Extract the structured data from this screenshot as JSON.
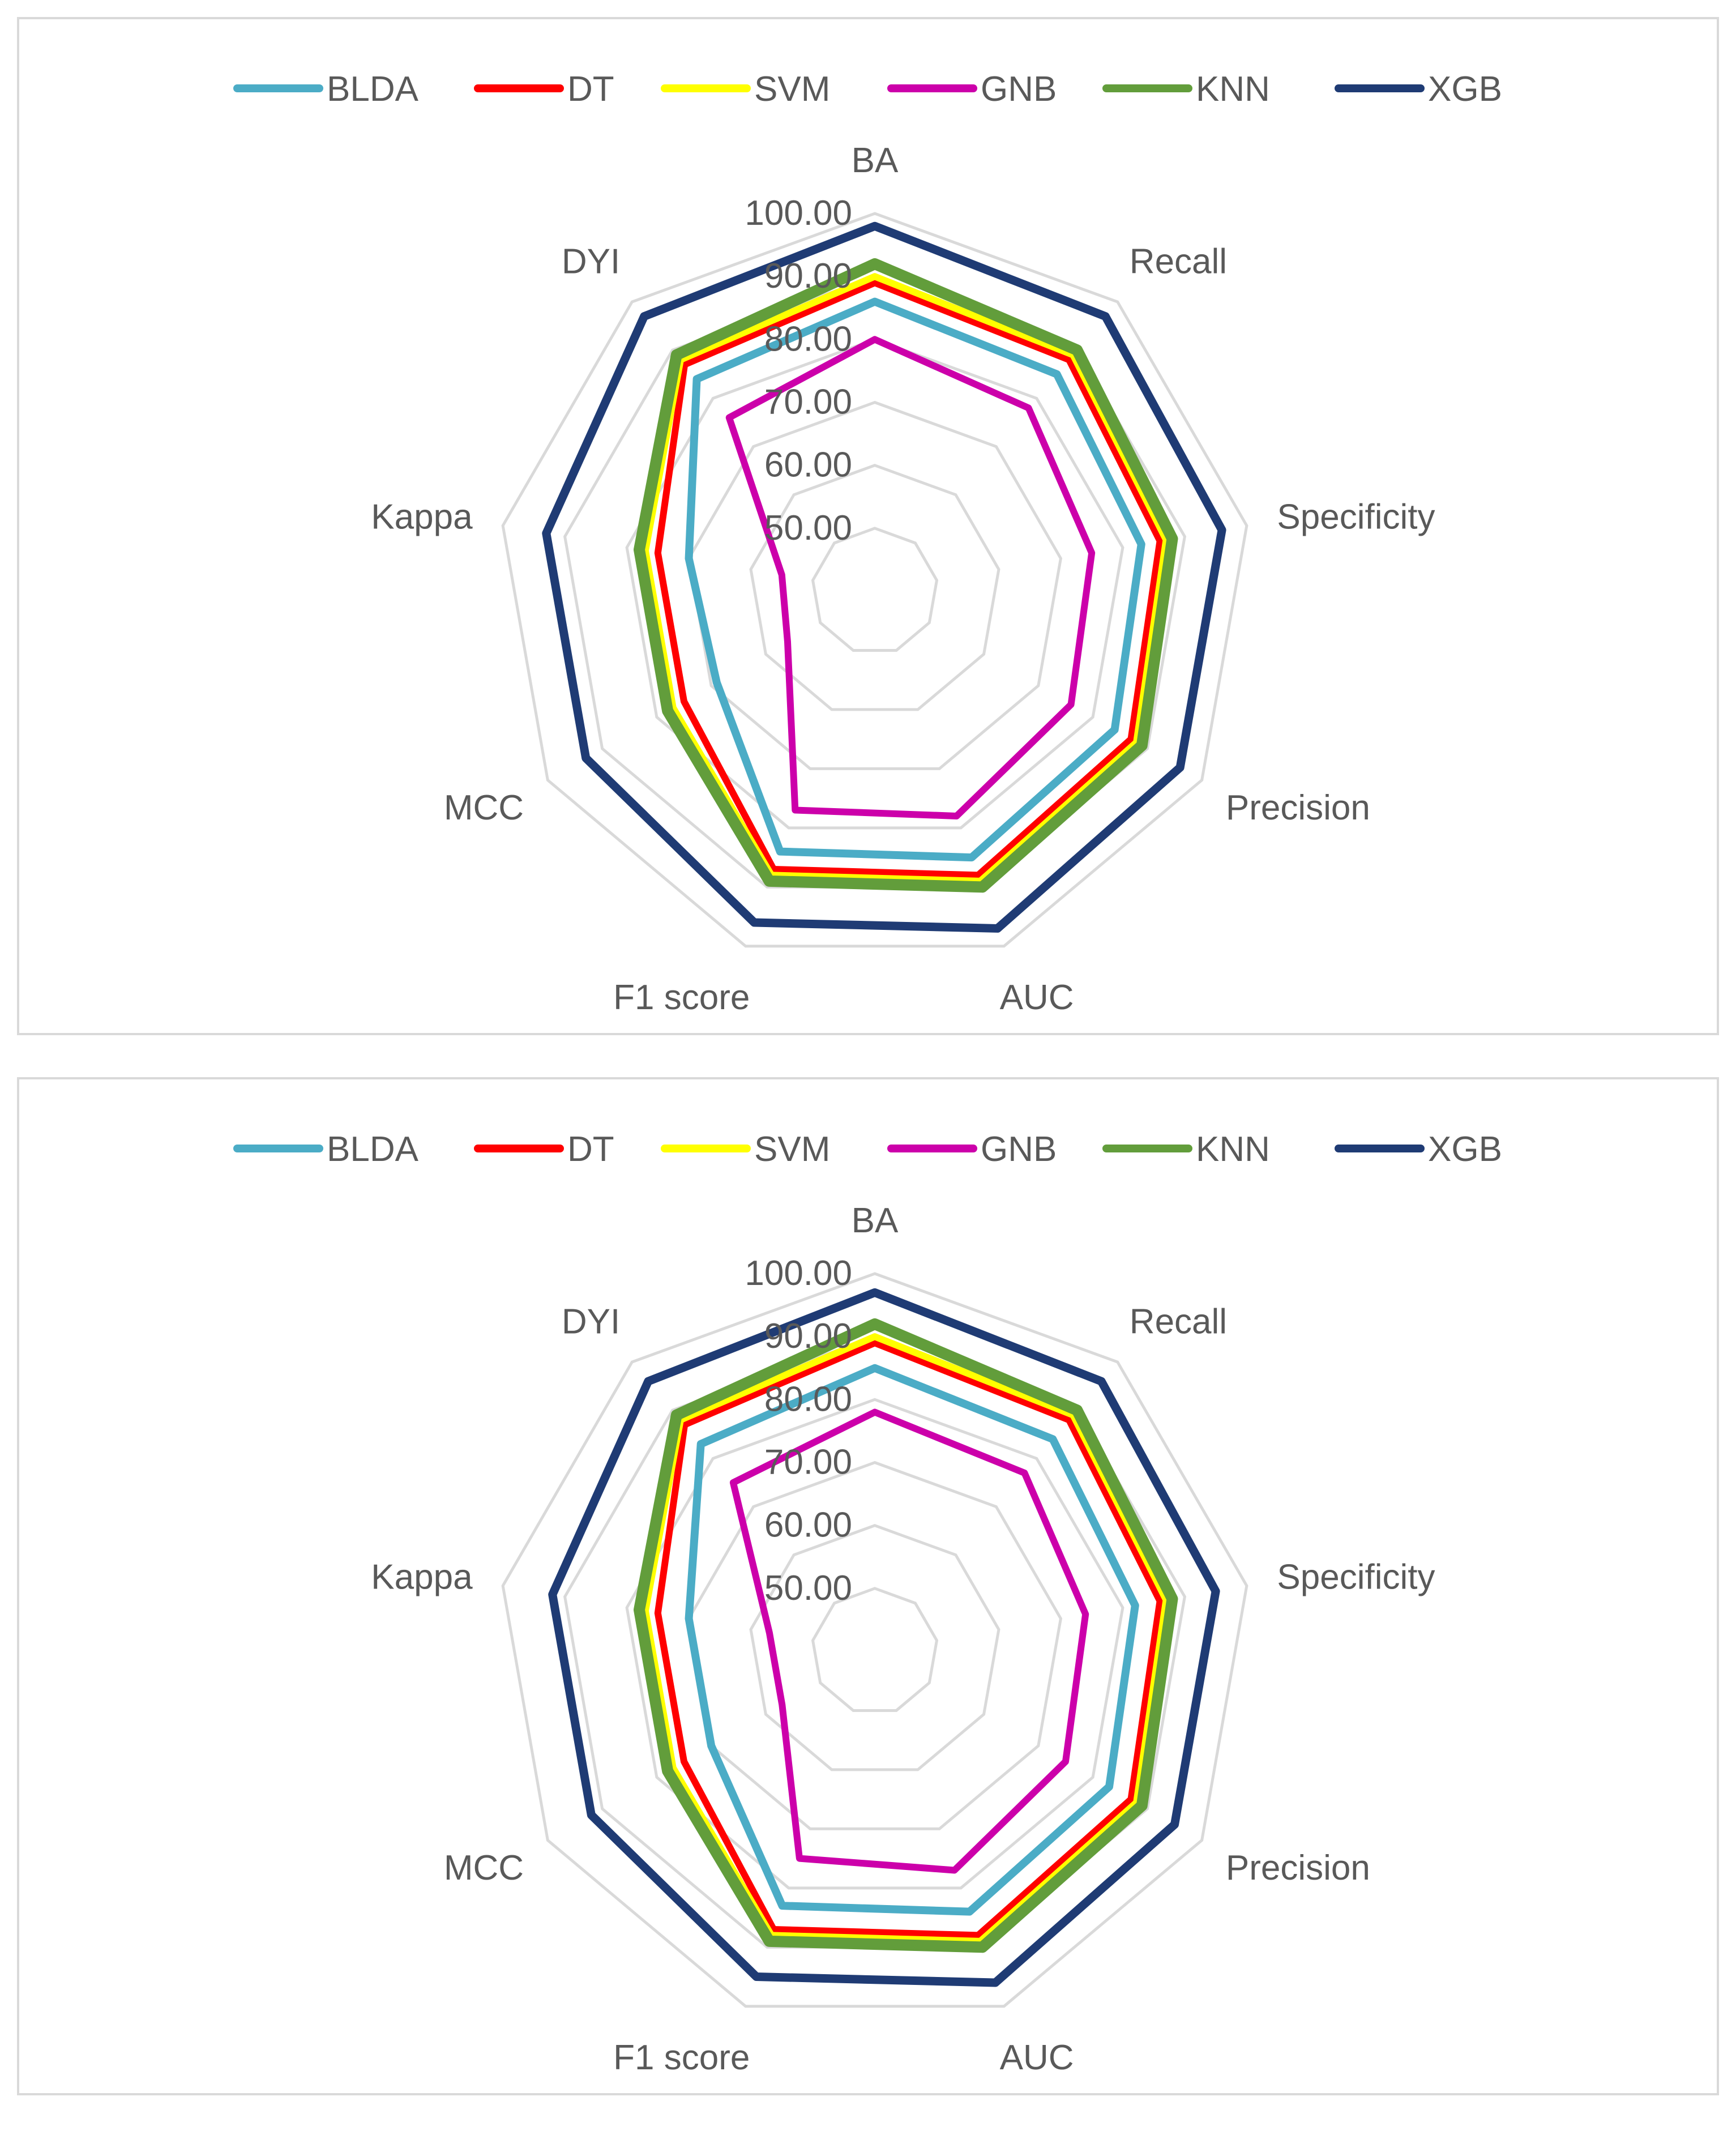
{
  "chart_data": [
    {
      "type": "radar",
      "axes": [
        "BA",
        "Recall",
        "Specificity",
        "Precision",
        "AUC",
        "F1 score",
        "MCC",
        "Kappa",
        "DYI"
      ],
      "ticks": [
        "50.00",
        "60.00",
        "70.00",
        "80.00",
        "90.00",
        "100.00"
      ],
      "range": [
        40,
        100
      ],
      "legend_position": "top",
      "series": [
        {
          "name": "BLDA",
          "color": "#4bacc6",
          "values": [
            86,
            85,
            83,
            84,
            85,
            84,
            69,
            70,
            84
          ]
        },
        {
          "name": "DT",
          "color": "#ff0000",
          "values": [
            89,
            88,
            86,
            87,
            88,
            87,
            75,
            75,
            87
          ]
        },
        {
          "name": "SVM",
          "color": "#ffff00",
          "values": [
            90,
            89,
            87,
            88,
            89,
            88,
            77,
            77,
            88
          ]
        },
        {
          "name": "GNB",
          "color": "#cc00aa",
          "values": [
            80,
            78,
            75,
            76,
            78,
            77,
            56,
            55,
            76
          ]
        },
        {
          "name": "KNN",
          "color": "#629d3b",
          "values": [
            92,
            90,
            88,
            89,
            90,
            89,
            78,
            78,
            89
          ]
        },
        {
          "name": "XGB",
          "color": "#1f3b74",
          "values": [
            98,
            97,
            96,
            96,
            97,
            96,
            93,
            93,
            97
          ]
        }
      ]
    },
    {
      "type": "radar",
      "axes": [
        "BA",
        "Recall",
        "Specificity",
        "Precision",
        "AUC",
        "F1 score",
        "MCC",
        "Kappa",
        "DYI"
      ],
      "ticks": [
        "50.00",
        "60.00",
        "70.00",
        "80.00",
        "90.00",
        "100.00"
      ],
      "range": [
        40,
        100
      ],
      "legend_position": "top",
      "series": [
        {
          "name": "BLDA",
          "color": "#4bacc6",
          "values": [
            85,
            84,
            82,
            83,
            84,
            83,
            70,
            70,
            83
          ]
        },
        {
          "name": "DT",
          "color": "#ff0000",
          "values": [
            89,
            88,
            86,
            87,
            88,
            87,
            75,
            75,
            87
          ]
        },
        {
          "name": "SVM",
          "color": "#ffff00",
          "values": [
            90,
            89,
            87,
            88,
            89,
            88,
            77,
            77,
            88
          ]
        },
        {
          "name": "GNB",
          "color": "#cc00aa",
          "values": [
            78,
            77,
            74,
            75,
            77,
            75,
            57,
            57,
            75
          ]
        },
        {
          "name": "KNN",
          "color": "#629d3b",
          "values": [
            92,
            90,
            88,
            89,
            90,
            89,
            78,
            78,
            89
          ]
        },
        {
          "name": "XGB",
          "color": "#1f3b74",
          "values": [
            97,
            96,
            95,
            95,
            96,
            95,
            92,
            92,
            96
          ]
        }
      ]
    }
  ]
}
